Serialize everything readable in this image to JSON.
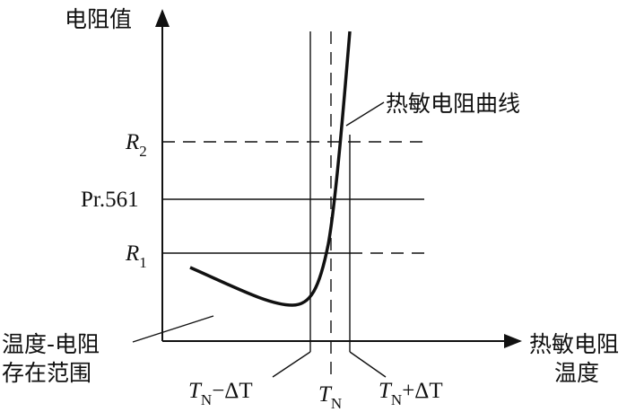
{
  "axes": {
    "y_label": "电阻值",
    "x_label_line1": "热敏电阻",
    "x_label_line2": "温度"
  },
  "levels": {
    "r2": {
      "letter": "R",
      "sub": "2"
    },
    "pr": {
      "text": "Pr.561"
    },
    "r1": {
      "letter": "R",
      "sub": "1"
    }
  },
  "curve_label": "热敏电阻曲线",
  "region_label_line1": "温度-电阻",
  "region_label_line2": "存在范围",
  "ticks": {
    "left": {
      "letter": "T",
      "sub": "N",
      "op": "−ΔT"
    },
    "center": {
      "letter": "T",
      "sub": "N"
    },
    "right": {
      "letter": "T",
      "sub": "N",
      "op": "+ΔT"
    }
  },
  "colors": {
    "ink": "#111111",
    "background": "#ffffff"
  }
}
